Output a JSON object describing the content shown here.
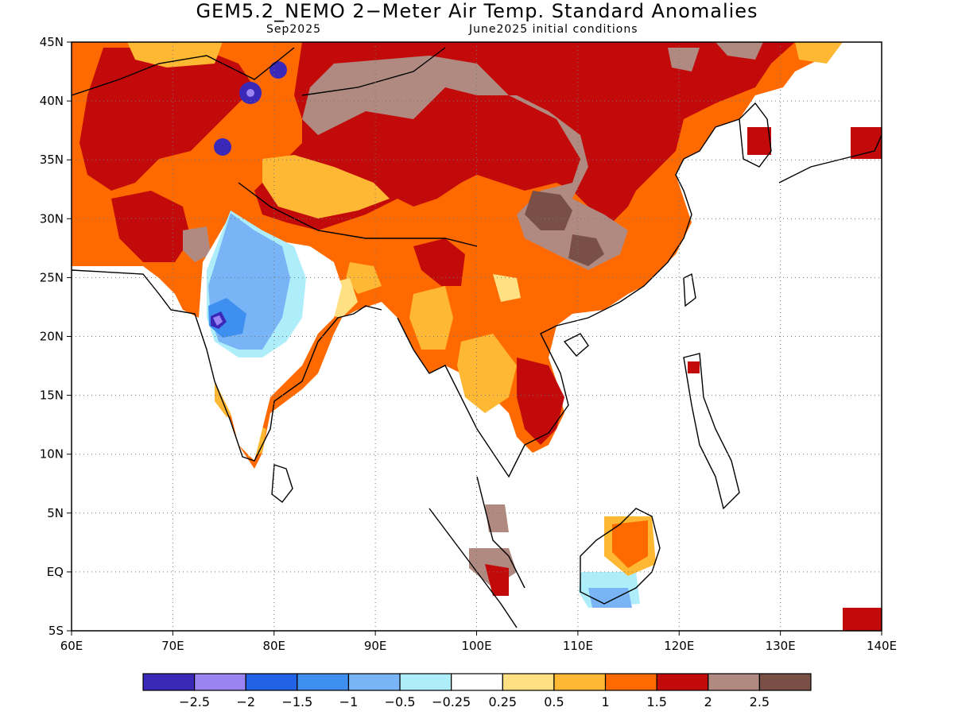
{
  "title": "GEM5.2_NEMO 2−Meter Air Temp. Standard Anomalies",
  "subtitle_left": "Sep2025",
  "subtitle_right": "June2025 initial conditions",
  "map": {
    "lon_range": [
      60,
      140
    ],
    "lat_range": [
      -5,
      45
    ],
    "lon_ticks": [
      {
        "value": 60,
        "label": "60E"
      },
      {
        "value": 70,
        "label": "70E"
      },
      {
        "value": 80,
        "label": "80E"
      },
      {
        "value": 90,
        "label": "90E"
      },
      {
        "value": 100,
        "label": "100E"
      },
      {
        "value": 110,
        "label": "110E"
      },
      {
        "value": 120,
        "label": "120E"
      },
      {
        "value": 130,
        "label": "130E"
      },
      {
        "value": 140,
        "label": "140E"
      }
    ],
    "lat_ticks": [
      {
        "value": -5,
        "label": "5S"
      },
      {
        "value": 0,
        "label": "EQ"
      },
      {
        "value": 5,
        "label": "5N"
      },
      {
        "value": 10,
        "label": "10N"
      },
      {
        "value": 15,
        "label": "15N"
      },
      {
        "value": 20,
        "label": "20N"
      },
      {
        "value": 25,
        "label": "25N"
      },
      {
        "value": 30,
        "label": "30N"
      },
      {
        "value": 35,
        "label": "35N"
      },
      {
        "value": 40,
        "label": "40N"
      },
      {
        "value": 45,
        "label": "45N"
      }
    ],
    "grid": "dotted"
  },
  "colorbar": {
    "colors": [
      "#3a28b8",
      "#9a84f2",
      "#2262e6",
      "#3e8ff0",
      "#78b4f6",
      "#aeeefa",
      "#ffffff",
      "#ffe083",
      "#ffb833",
      "#ff6a00",
      "#c30a0a",
      "#b08a80",
      "#7a5046"
    ],
    "labels": [
      "−2.5",
      "−2",
      "−1.5",
      "−1",
      "−0.5",
      "−0.25",
      "0.25",
      "0.5",
      "1",
      "1.5",
      "2",
      "2.5"
    ]
  },
  "colors": {
    "orange": "#ff6a00",
    "dark_red": "#c30a0a",
    "light_orange": "#ffb833",
    "yellow": "#ffe083",
    "rose_brown": "#b08a80",
    "dark_brown": "#7a5046",
    "light_blue": "#78b4f6",
    "pale_blue": "#aeeefa",
    "blue": "#3e8ff0",
    "dark_blue": "#3a28b8",
    "purple": "#9a84f2"
  }
}
